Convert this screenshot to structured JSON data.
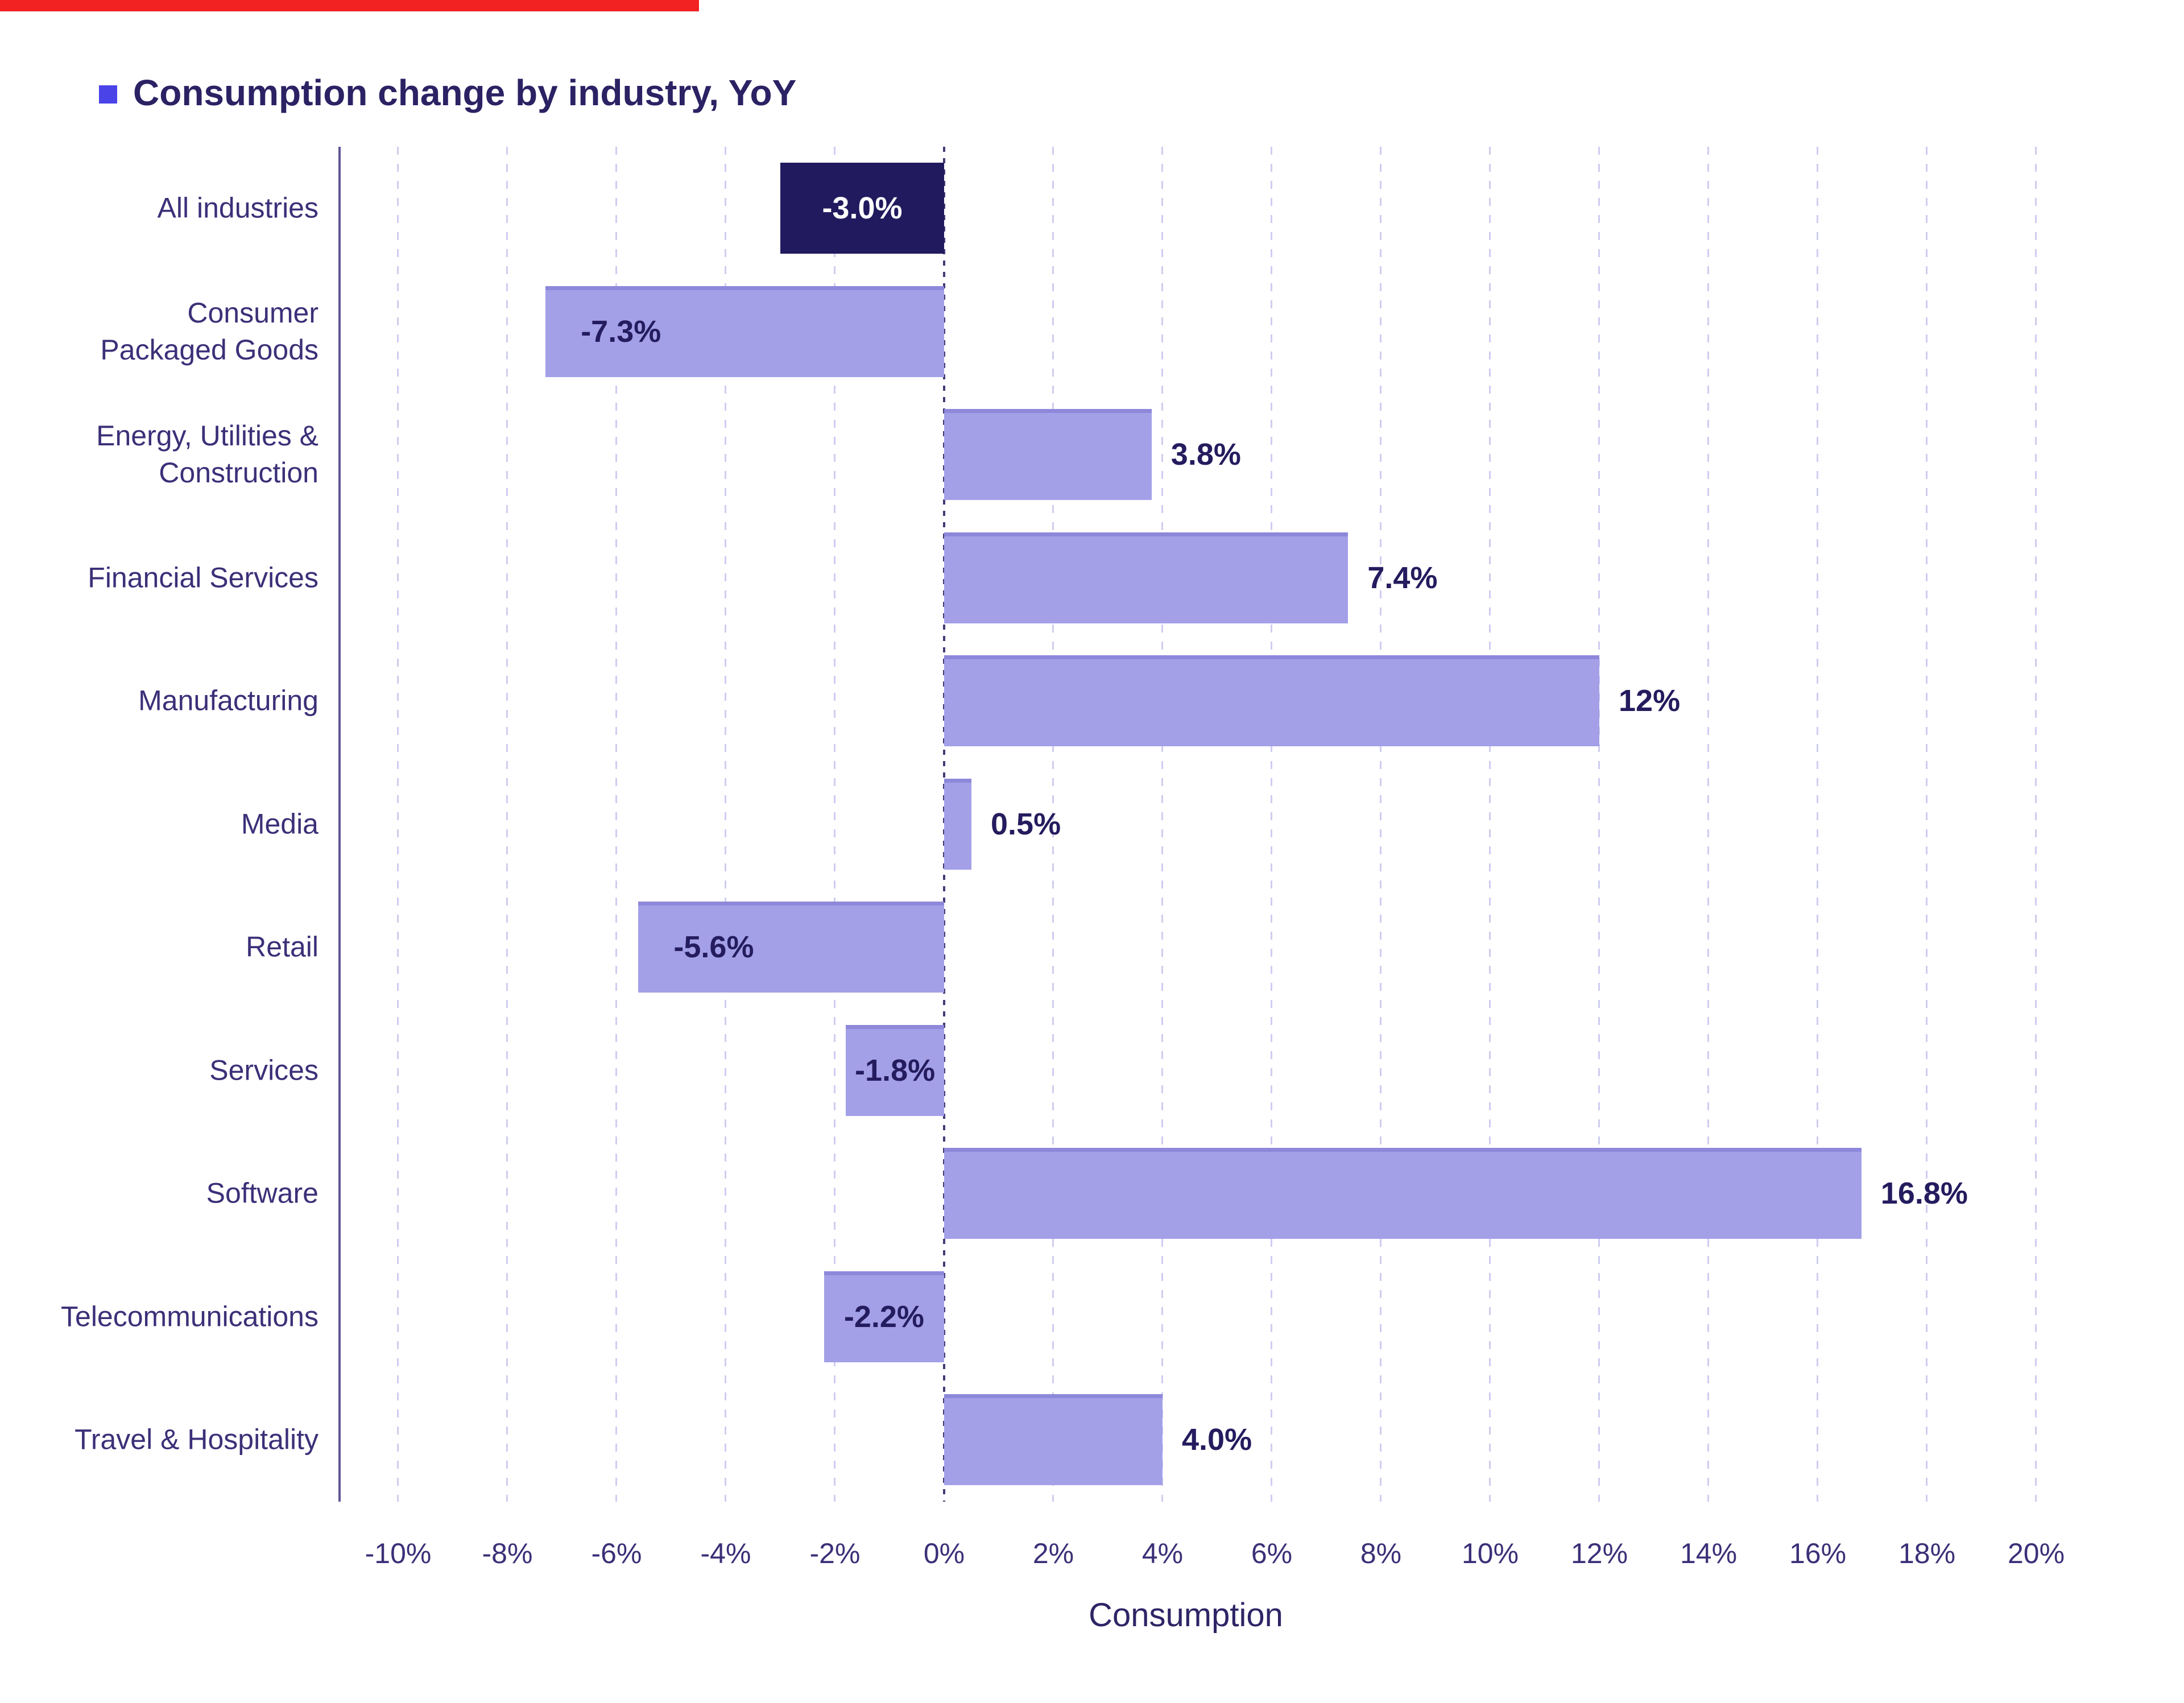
{
  "title": {
    "text": "Consumption change by industry, YoY",
    "bullet_color": "#4a43e8"
  },
  "video_progress": {
    "color": "#f32222",
    "fraction": 0.32
  },
  "chart_data": {
    "type": "bar",
    "orientation": "horizontal",
    "title": "Consumption change by industry, YoY",
    "xlabel": "Consumption",
    "xlim": [
      -11,
      22
    ],
    "grid": "vertical-dashed",
    "legend_position": "none",
    "x_ticks": [
      {
        "value": -10,
        "label": "-10%"
      },
      {
        "value": -8,
        "label": "-8%"
      },
      {
        "value": -6,
        "label": "-6%"
      },
      {
        "value": -4,
        "label": "-4%"
      },
      {
        "value": -2,
        "label": "-2%"
      },
      {
        "value": 0,
        "label": "0%"
      },
      {
        "value": 2,
        "label": "2%"
      },
      {
        "value": 4,
        "label": "4%"
      },
      {
        "value": 6,
        "label": "6%"
      },
      {
        "value": 8,
        "label": "8%"
      },
      {
        "value": 10,
        "label": "10%"
      },
      {
        "value": 12,
        "label": "12%"
      },
      {
        "value": 14,
        "label": "14%"
      },
      {
        "value": 16,
        "label": "16%"
      },
      {
        "value": 18,
        "label": "18%"
      },
      {
        "value": 20,
        "label": "20%"
      }
    ],
    "rows": [
      {
        "category": "All industries",
        "lines": [
          "All industries"
        ],
        "value": -3.0,
        "display": "-3.0%",
        "emphasis": true,
        "label_position": "inside-center"
      },
      {
        "category": "Consumer Packaged Goods",
        "lines": [
          "Consumer",
          "Packaged Goods"
        ],
        "value": -7.3,
        "display": "-7.3%",
        "emphasis": false,
        "label_position": "inside-left"
      },
      {
        "category": "Energy, Utilities & Construction",
        "lines": [
          "Energy, Utilities &",
          "Construction"
        ],
        "value": 3.8,
        "display": "3.8%",
        "emphasis": false,
        "label_position": "outside"
      },
      {
        "category": "Financial Services",
        "lines": [
          "Financial Services"
        ],
        "value": 7.4,
        "display": "7.4%",
        "emphasis": false,
        "label_position": "outside"
      },
      {
        "category": "Manufacturing",
        "lines": [
          "Manufacturing"
        ],
        "value": 12,
        "display": "12%",
        "emphasis": false,
        "label_position": "outside"
      },
      {
        "category": "Media",
        "lines": [
          "Media"
        ],
        "value": 0.5,
        "display": "0.5%",
        "emphasis": false,
        "label_position": "outside"
      },
      {
        "category": "Retail",
        "lines": [
          "Retail"
        ],
        "value": -5.6,
        "display": "-5.6%",
        "emphasis": false,
        "label_position": "inside-left"
      },
      {
        "category": "Services",
        "lines": [
          "Services"
        ],
        "value": -1.8,
        "display": "-1.8%",
        "emphasis": false,
        "label_position": "inside-center"
      },
      {
        "category": "Software",
        "lines": [
          "Software"
        ],
        "value": 16.8,
        "display": "16.8%",
        "emphasis": false,
        "label_position": "outside"
      },
      {
        "category": "Telecommunications",
        "lines": [
          "Telecommunications"
        ],
        "value": -2.2,
        "display": "-2.2%",
        "emphasis": false,
        "label_position": "inside-center"
      },
      {
        "category": "Travel & Hospitality",
        "lines": [
          "Travel & Hospitality"
        ],
        "value": 4.0,
        "display": "4.0%",
        "emphasis": false,
        "label_position": "outside"
      }
    ],
    "colors": {
      "bar": "#a3a0e8",
      "bar_top_edge": "#8d88da",
      "bar_emphasis": "#211a5e",
      "grid": "#cfcdf0",
      "zero_line": "#433a75",
      "axis": "#5e5794",
      "category_text": "#3b3078",
      "value_text": "#241c5e",
      "value_text_on_dark": "#ffffff",
      "title_text": "#2b2264"
    }
  }
}
